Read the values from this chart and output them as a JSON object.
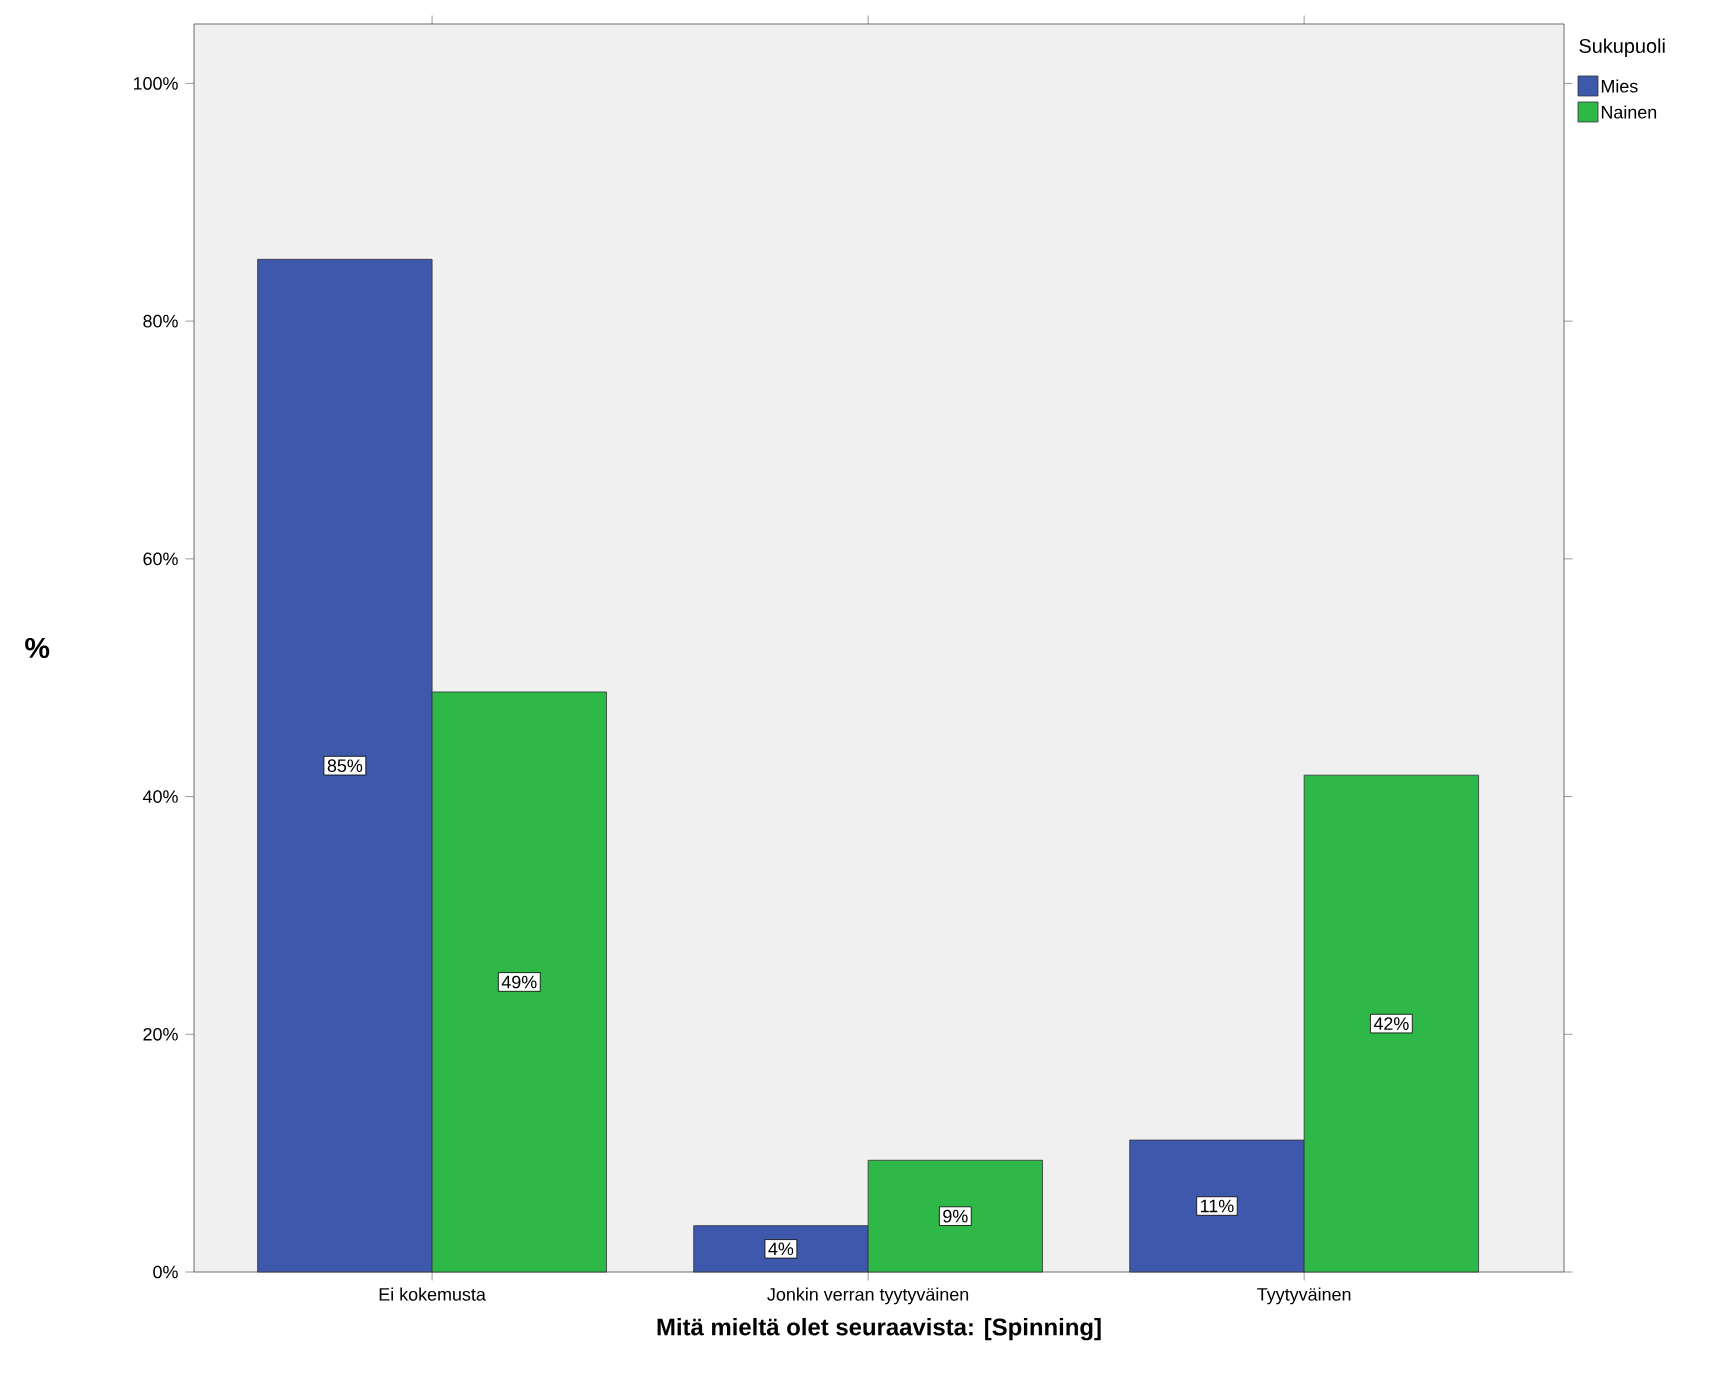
{
  "chart_data": {
    "type": "bar",
    "xlabel": "Mitä mieltä olet seuraavista: [Spinning]",
    "ylabel": "%",
    "legend_title": "Sukupuoli",
    "legend": "top right",
    "categories": [
      "Ei kokemusta",
      "Jonkin verran tyytyväinen",
      "Tyytyväinen"
    ],
    "series": [
      {
        "name": "Mies",
        "color": "#3e58ac",
        "values": [
          85.2,
          3.9,
          11.1
        ],
        "value_labels": [
          "85%",
          "4%",
          "11%"
        ]
      },
      {
        "name": "Nainen",
        "color": "#2eb848",
        "values": [
          48.8,
          9.4,
          41.8
        ],
        "value_labels": [
          "49%",
          "9%",
          "42%"
        ]
      }
    ],
    "ylim": [
      0,
      105
    ],
    "yticks": [
      {
        "value": 0,
        "label": "0%"
      },
      {
        "value": 20,
        "label": "20%"
      },
      {
        "value": 40,
        "label": "40%"
      },
      {
        "value": 60,
        "label": "60%"
      },
      {
        "value": 80,
        "label": "80%"
      },
      {
        "value": 100,
        "label": "100%"
      }
    ]
  }
}
